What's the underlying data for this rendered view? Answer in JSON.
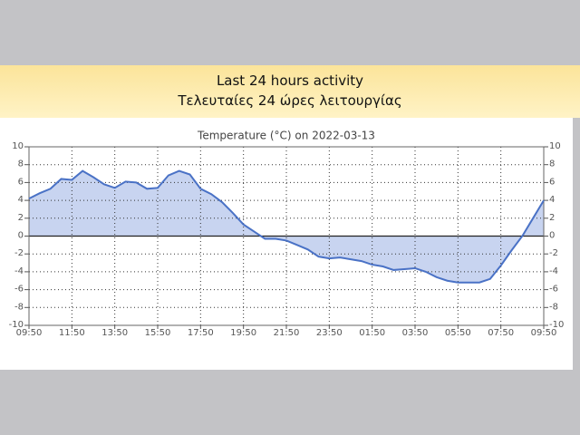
{
  "header": {
    "title": "Last 24 hours activity",
    "subtitle": "Τελευταίες 24 ώρες λειτουργίας"
  },
  "chart_data": {
    "type": "area",
    "title": "Temperature (°C) on 2022-03-13",
    "x": [
      0,
      0.5,
      1,
      1.5,
      2,
      2.5,
      3,
      3.5,
      4,
      4.5,
      5,
      5.5,
      6,
      6.5,
      7,
      7.5,
      8,
      8.5,
      9,
      9.5,
      10,
      10.5,
      11,
      11.5,
      12,
      12.5,
      13,
      13.5,
      14,
      14.5,
      15,
      15.5,
      16,
      16.5,
      17,
      17.5,
      18,
      18.5,
      19,
      19.5,
      20,
      20.5,
      21,
      21.5,
      22,
      22.5,
      23,
      23.5,
      24
    ],
    "values": [
      4.2,
      4.8,
      5.3,
      6.4,
      6.3,
      7.3,
      6.6,
      5.8,
      5.4,
      6.1,
      6.0,
      5.3,
      5.4,
      6.8,
      7.3,
      6.9,
      5.3,
      4.7,
      3.8,
      2.6,
      1.3,
      0.5,
      -0.3,
      -0.3,
      -0.5,
      -1.0,
      -1.5,
      -2.3,
      -2.5,
      -2.4,
      -2.6,
      -2.8,
      -3.2,
      -3.4,
      -3.8,
      -3.7,
      -3.6,
      -4.0,
      -4.6,
      -5.0,
      -5.2,
      -5.2,
      -5.2,
      -4.8,
      -3.3,
      -1.6,
      0.0,
      2.0,
      4.0
    ],
    "color": "#4a72c6",
    "fill": "#c8d4f0",
    "xlim": [
      0,
      24
    ],
    "xticks": [
      {
        "value": 0,
        "label": "09:50"
      },
      {
        "value": 2,
        "label": "11:50"
      },
      {
        "value": 4,
        "label": "13:50"
      },
      {
        "value": 6,
        "label": "15:50"
      },
      {
        "value": 8,
        "label": "17:50"
      },
      {
        "value": 10,
        "label": "19:50"
      },
      {
        "value": 12,
        "label": "21:50"
      },
      {
        "value": 14,
        "label": "23:50"
      },
      {
        "value": 16,
        "label": "01:50"
      },
      {
        "value": 18,
        "label": "03:50"
      },
      {
        "value": 20,
        "label": "05:50"
      },
      {
        "value": 22,
        "label": "07:50"
      },
      {
        "value": 24,
        "label": "09:50"
      }
    ],
    "ylim": [
      -10,
      10
    ],
    "yticks": [
      -10,
      -8,
      -6,
      -4,
      -2,
      0,
      2,
      4,
      6,
      8,
      10
    ],
    "y2lim": [
      -10,
      10
    ],
    "y2ticks": [
      -10,
      -8,
      -6,
      -4,
      -2,
      0,
      2,
      4,
      6,
      8,
      10
    ],
    "grid": true
  }
}
